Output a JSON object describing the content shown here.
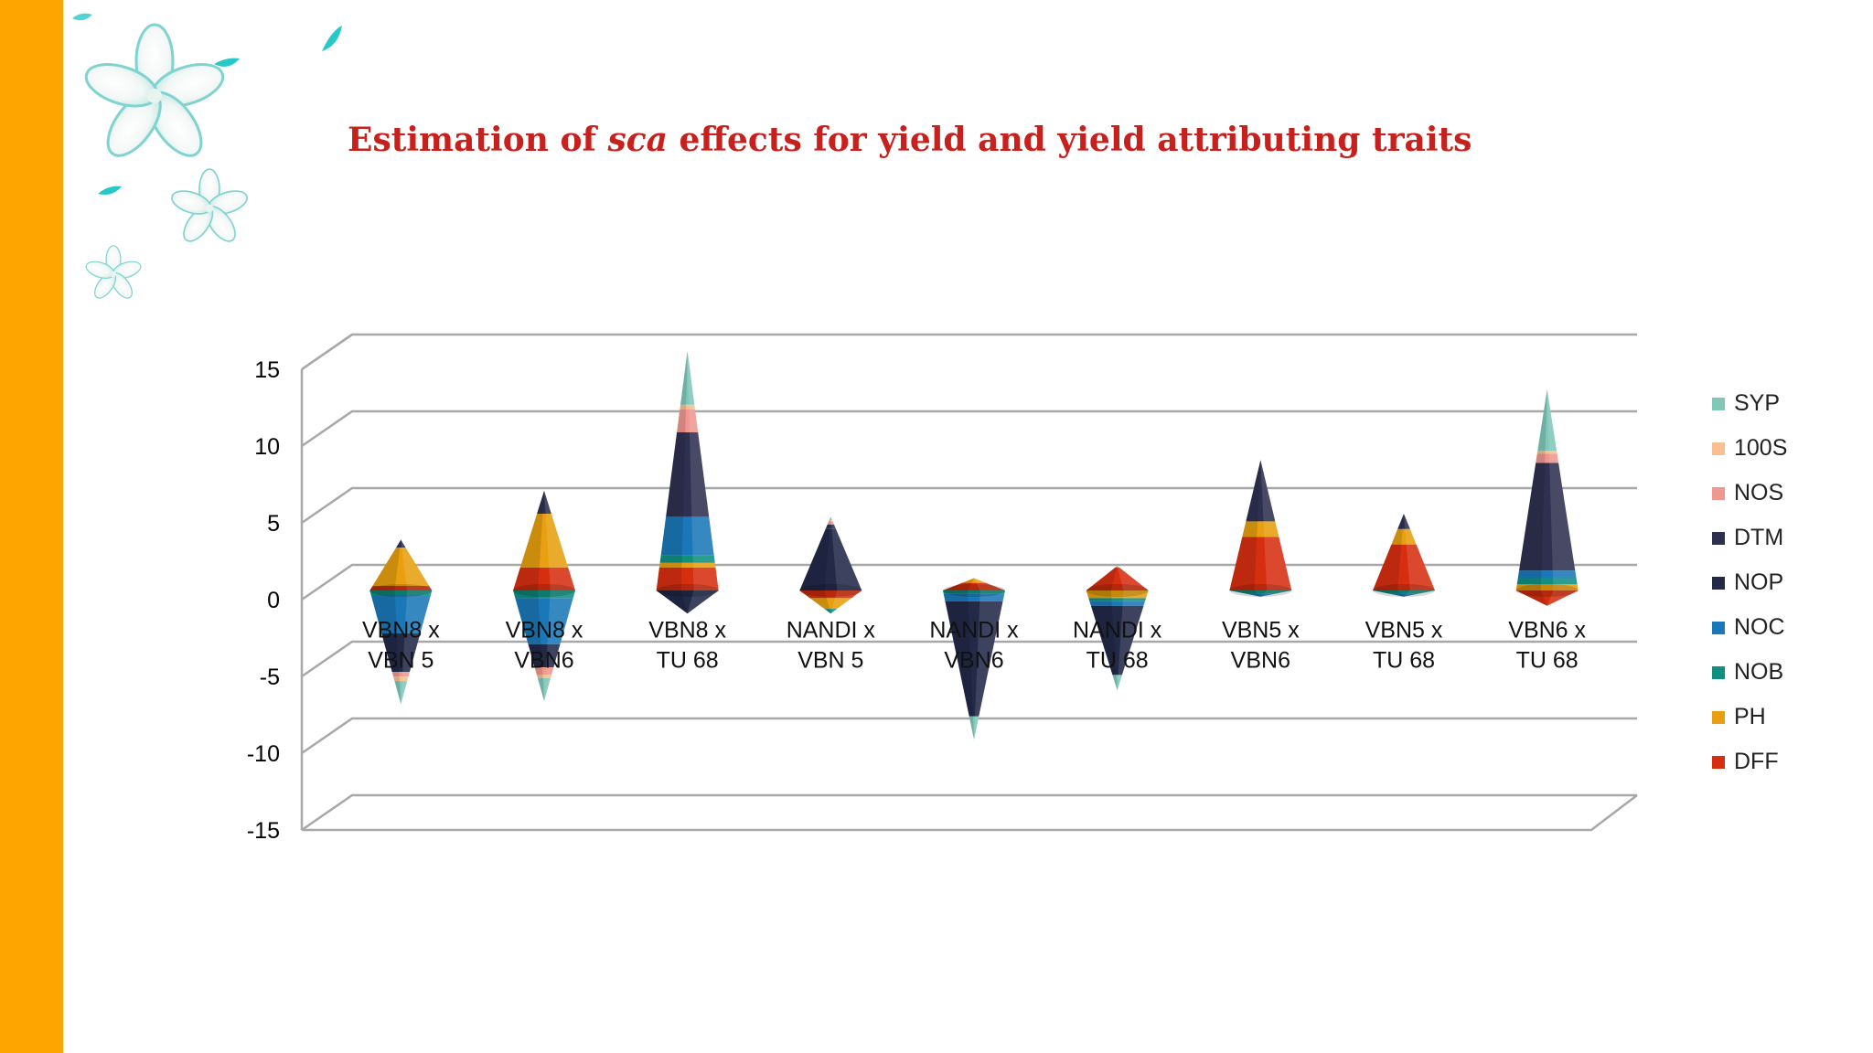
{
  "slide": {
    "accent_color": "#ffa500",
    "decoration": "flower-icons",
    "title_prefix": "Estimation of ",
    "title_emphasis": "sca",
    "title_suffix": " effects for yield and yield attributing traits",
    "title_color": "#c8201c"
  },
  "chart_data": {
    "type": "bar",
    "style": "3d-cone",
    "categories": [
      "VBN8 x VBN 5",
      "VBN8 x VBN6",
      "VBN8 x TU 68",
      "NANDI x VBN 5",
      "NANDI x VBN6",
      "NANDI x TU 68",
      "VBN5 x VBN6",
      "VBN5 x TU 68",
      "VBN6 x TU 68"
    ],
    "category_lines": [
      [
        "VBN8 x",
        "VBN 5"
      ],
      [
        "VBN8 x",
        "VBN6"
      ],
      [
        "VBN8 x",
        "TU 68"
      ],
      [
        "NANDI x",
        "VBN 5"
      ],
      [
        "NANDI x",
        "VBN6"
      ],
      [
        "NANDI x",
        "TU 68"
      ],
      [
        "VBN5 x",
        "VBN6"
      ],
      [
        "VBN5 x",
        "TU 68"
      ],
      [
        "VBN6 x",
        "TU 68"
      ]
    ],
    "ylim": [
      -15,
      15
    ],
    "yticks": [
      "15",
      "10",
      "5",
      "0",
      "-5",
      "-10",
      "-15"
    ],
    "grid": true,
    "legend_position": "right",
    "series": [
      {
        "name": "DFF",
        "color": "#d62f10",
        "values": [
          0.3,
          1.5,
          1.5,
          -0.5,
          0.5,
          1.5,
          3.5,
          3.0,
          -1.0
        ]
      },
      {
        "name": "PH",
        "color": "#e8a010",
        "values": [
          2.5,
          3.5,
          0.3,
          -0.7,
          0.3,
          -0.5,
          1.0,
          1.0,
          0.4
        ]
      },
      {
        "name": "NOB",
        "color": "#119080",
        "values": [
          -0.3,
          -0.5,
          0.5,
          -0.2,
          -0.2,
          -0.2,
          -0.2,
          -0.2,
          0.4
        ]
      },
      {
        "name": "NOC",
        "color": "#1b78b8",
        "values": [
          -2.5,
          -3.0,
          2.5,
          -0.1,
          -0.5,
          -0.3,
          -0.2,
          -0.2,
          0.5
        ]
      },
      {
        "name": "NOP",
        "color": "#232a48",
        "values": [
          -2.5,
          -1.5,
          -1.5,
          4.0,
          -7.5,
          -4.5,
          0.0,
          0.0,
          0.0
        ]
      },
      {
        "name": "DTM",
        "color": "#2e3050",
        "values": [
          0.5,
          1.5,
          5.5,
          0.3,
          0.0,
          0.0,
          4.0,
          1.0,
          7.0
        ]
      },
      {
        "name": "NOS",
        "color": "#f09890",
        "values": [
          -0.3,
          -0.5,
          1.5,
          0.2,
          0.0,
          0.1,
          0.0,
          0.0,
          0.6
        ]
      },
      {
        "name": "100S",
        "color": "#f8c090",
        "values": [
          -0.3,
          -0.2,
          0.3,
          0.1,
          0.0,
          0.0,
          0.0,
          0.0,
          0.2
        ]
      },
      {
        "name": "SYP",
        "color": "#80c8b8",
        "values": [
          -1.5,
          -1.5,
          3.5,
          0.2,
          -1.5,
          -1.0,
          0.0,
          0.0,
          4.0
        ]
      }
    ],
    "legend_order": [
      "SYP",
      "100S",
      "NOS",
      "DTM",
      "NOP",
      "NOC",
      "NOB",
      "PH",
      "DFF"
    ]
  }
}
